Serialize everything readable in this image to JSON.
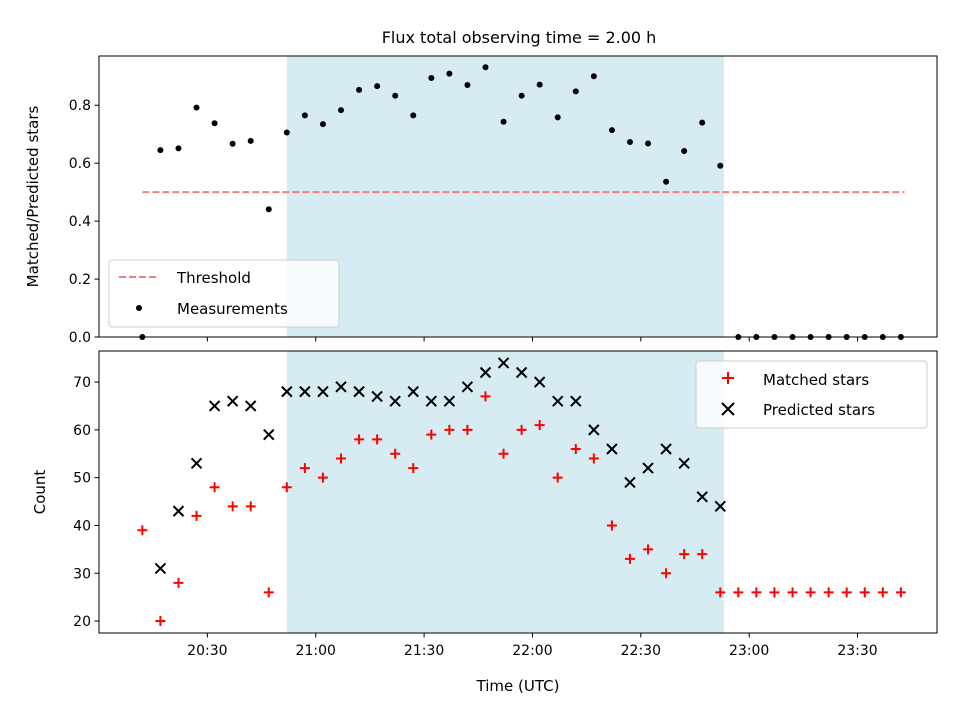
{
  "title": "Flux total observing time = 2.00 h",
  "colors": {
    "band": "#add8e6",
    "threshold": "#f08080",
    "measurement": "#000000",
    "matched": "#ff0000",
    "predicted": "#000000"
  },
  "chart_data": [
    {
      "type": "scatter",
      "panel": "top",
      "ylabel": "Matched/Predicted stars",
      "ylim": [
        0,
        0.97
      ],
      "yticks": [
        0.0,
        0.2,
        0.4,
        0.6,
        0.8
      ],
      "ytick_labels": [
        "0.0",
        "0.2",
        "0.4",
        "0.6",
        "0.8"
      ],
      "xlim": [
        "20:00",
        "23:52"
      ],
      "highlight_band": [
        "20:52",
        "22:53"
      ],
      "legend": {
        "position": "lower-left",
        "entries": [
          "Threshold",
          "Measurements"
        ]
      },
      "threshold": {
        "name": "Threshold",
        "value": 0.5,
        "x_range": [
          "20:12",
          "23:43"
        ],
        "style": "dashed"
      },
      "series": [
        {
          "name": "Measurements",
          "x": [
            "20:12",
            "20:17",
            "20:22",
            "20:27",
            "20:32",
            "20:37",
            "20:42",
            "20:47",
            "20:52",
            "20:57",
            "21:02",
            "21:07",
            "21:12",
            "21:17",
            "21:22",
            "21:27",
            "21:32",
            "21:37",
            "21:42",
            "21:47",
            "21:52",
            "21:57",
            "22:02",
            "22:07",
            "22:12",
            "22:17",
            "22:22",
            "22:27",
            "22:32",
            "22:37",
            "22:42",
            "22:47",
            "22:52",
            "22:57",
            "23:02",
            "23:07",
            "23:12",
            "23:17",
            "23:22",
            "23:27",
            "23:32",
            "23:37",
            "23:42"
          ],
          "y": [
            0.0,
            0.645,
            0.651,
            0.792,
            0.738,
            0.667,
            0.677,
            0.441,
            0.706,
            0.765,
            0.735,
            0.783,
            0.853,
            0.866,
            0.833,
            0.765,
            0.894,
            0.909,
            0.87,
            0.931,
            0.743,
            0.833,
            0.871,
            0.758,
            0.848,
            0.9,
            0.714,
            0.673,
            0.668,
            0.536,
            0.642,
            0.74,
            0.591,
            0.0,
            0.0,
            0.0,
            0.0,
            0.0,
            0.0,
            0.0,
            0.0,
            0.0,
            0.0
          ]
        }
      ]
    },
    {
      "type": "scatter",
      "panel": "bottom",
      "xlabel": "Time (UTC)",
      "ylabel": "Count",
      "ylim": [
        17.5,
        76.5
      ],
      "yticks": [
        20,
        30,
        40,
        50,
        60,
        70
      ],
      "ytick_labels": [
        "20",
        "30",
        "40",
        "50",
        "60",
        "70"
      ],
      "xlim": [
        "20:00",
        "23:52"
      ],
      "xticks": [
        "20:30",
        "21:00",
        "21:30",
        "22:00",
        "22:30",
        "23:00",
        "23:30"
      ],
      "xtick_labels": [
        "20:30",
        "21:00",
        "21:30",
        "22:00",
        "22:30",
        "23:00",
        "23:30"
      ],
      "highlight_band": [
        "20:52",
        "22:53"
      ],
      "legend": {
        "position": "upper-right",
        "entries": [
          "Matched stars",
          "Predicted stars"
        ]
      },
      "series": [
        {
          "name": "Matched stars",
          "marker": "plus",
          "x": [
            "20:12",
            "20:17",
            "20:22",
            "20:27",
            "20:32",
            "20:37",
            "20:42",
            "20:47",
            "20:52",
            "20:57",
            "21:02",
            "21:07",
            "21:12",
            "21:17",
            "21:22",
            "21:27",
            "21:32",
            "21:37",
            "21:42",
            "21:47",
            "21:52",
            "21:57",
            "22:02",
            "22:07",
            "22:12",
            "22:17",
            "22:22",
            "22:27",
            "22:32",
            "22:37",
            "22:42",
            "22:47",
            "22:52",
            "22:57",
            "23:02",
            "23:07",
            "23:12",
            "23:17",
            "23:22",
            "23:27",
            "23:32",
            "23:37",
            "23:42"
          ],
          "y": [
            39,
            20,
            28,
            42,
            48,
            44,
            44,
            26,
            48,
            52,
            50,
            54,
            58,
            58,
            55,
            52,
            59,
            60,
            60,
            67,
            55,
            60,
            61,
            50,
            56,
            54,
            40,
            33,
            35,
            30,
            34,
            34,
            26,
            26,
            26,
            26,
            26,
            26,
            26,
            26,
            26,
            26,
            26
          ]
        },
        {
          "name": "Predicted stars",
          "marker": "x",
          "x": [
            "20:17",
            "20:22",
            "20:27",
            "20:32",
            "20:37",
            "20:42",
            "20:47",
            "20:52",
            "20:57",
            "21:02",
            "21:07",
            "21:12",
            "21:17",
            "21:22",
            "21:27",
            "21:32",
            "21:37",
            "21:42",
            "21:47",
            "21:52",
            "21:57",
            "22:02",
            "22:07",
            "22:12",
            "22:17",
            "22:22",
            "22:27",
            "22:32",
            "22:37",
            "22:42",
            "22:47",
            "22:52"
          ],
          "y": [
            31,
            43,
            53,
            65,
            66,
            65,
            59,
            68,
            68,
            68,
            69,
            68,
            67,
            66,
            68,
            66,
            66,
            69,
            72,
            74,
            72,
            70,
            66,
            66,
            60,
            56,
            49,
            52,
            56,
            53,
            46,
            44
          ]
        }
      ]
    }
  ]
}
